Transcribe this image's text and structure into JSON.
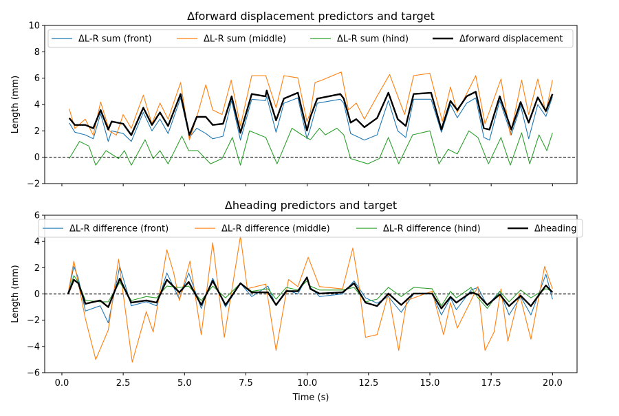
{
  "chart_data": [
    {
      "type": "line",
      "title": "Δforward displacement predictors and target",
      "xlabel": "",
      "ylabel": "Length (mm)",
      "xlim": [
        -0.7,
        21.0
      ],
      "ylim": [
        -2,
        10
      ],
      "xticks": [
        0.0,
        2.5,
        5.0,
        7.5,
        10.0,
        12.5,
        15.0,
        17.5,
        20.0
      ],
      "xtick_labels_visible": false,
      "yticks": [
        -2,
        0,
        2,
        4,
        6,
        8,
        10
      ],
      "ytick_labels": [
        "−2",
        "0",
        "2",
        "4",
        "6",
        "8",
        "10"
      ],
      "reference_line": {
        "y": 0,
        "style": "dashed",
        "color": "#000000"
      },
      "grid": false,
      "legend": {
        "placement": "top",
        "columns": 4
      },
      "series": [
        {
          "name": "ΔL-R sum (front)",
          "color": "#1f77b4",
          "width": "thin",
          "x": [
            0.3,
            0.53,
            0.95,
            1.28,
            1.58,
            1.89,
            2.03,
            2.5,
            2.83,
            3.32,
            3.67,
            4.0,
            4.33,
            4.84,
            5.2,
            5.5,
            5.87,
            6.15,
            6.57,
            6.92,
            7.28,
            7.74,
            8.3,
            8.35,
            8.73,
            9.05,
            9.62,
            9.99,
            10.13,
            10.41,
            11.35,
            11.49,
            11.77,
            12.0,
            12.33,
            12.85,
            13.31,
            13.69,
            14.02,
            14.34,
            15.05,
            15.47,
            15.84,
            16.12,
            16.5,
            16.87,
            17.2,
            17.43,
            17.85,
            18.32,
            18.7,
            19.03,
            19.4,
            19.73,
            20.0
          ],
          "y": [
            2.6,
            1.9,
            1.7,
            1.4,
            3.3,
            1.2,
            2.0,
            1.8,
            1.2,
            3.4,
            2.0,
            2.9,
            1.8,
            4.5,
            1.5,
            2.2,
            1.8,
            1.4,
            1.6,
            4.3,
            1.3,
            4.4,
            4.3,
            4.6,
            1.9,
            4.1,
            4.5,
            1.4,
            2.2,
            4.1,
            4.4,
            4.1,
            1.8,
            1.6,
            1.3,
            1.7,
            4.3,
            2.0,
            1.5,
            4.4,
            4.4,
            1.9,
            4.0,
            3.0,
            4.1,
            4.5,
            1.5,
            1.3,
            4.3,
            1.7,
            3.9,
            1.4,
            4.0,
            3.1,
            4.6
          ]
        },
        {
          "name": "ΔL-R sum (middle)",
          "color": "#ff7f0e",
          "width": "thin",
          "x": [
            0.3,
            0.53,
            0.95,
            1.28,
            1.58,
            1.94,
            2.22,
            2.5,
            2.83,
            3.32,
            3.67,
            4.0,
            4.33,
            4.84,
            5.2,
            5.5,
            5.87,
            6.15,
            6.53,
            6.9,
            7.28,
            7.74,
            8.31,
            8.73,
            9.05,
            9.62,
            9.99,
            10.13,
            10.32,
            10.6,
            11.39,
            11.68,
            12.0,
            12.33,
            12.85,
            13.36,
            13.97,
            14.34,
            15.0,
            15.51,
            15.84,
            16.12,
            16.87,
            17.25,
            17.9,
            18.28,
            18.74,
            19.03,
            19.4,
            19.73,
            20.0
          ],
          "y": [
            3.67,
            2.19,
            2.89,
            1.67,
            4.19,
            2.0,
            1.67,
            3.24,
            2.19,
            4.71,
            2.54,
            4.11,
            2.89,
            5.67,
            1.32,
            3.06,
            5.5,
            3.59,
            3.24,
            5.85,
            2.37,
            6.19,
            6.19,
            3.76,
            6.19,
            6.02,
            2.71,
            3.41,
            5.67,
            5.85,
            6.46,
            3.59,
            4.11,
            2.89,
            4.63,
            6.28,
            3.24,
            6.19,
            6.37,
            2.71,
            5.33,
            3.41,
            6.19,
            2.54,
            5.93,
            1.67,
            5.85,
            3.24,
            5.93,
            3.41,
            5.85
          ]
        },
        {
          "name": "ΔL-R sum (hind)",
          "color": "#2ca02c",
          "width": "thin",
          "x": [
            0.3,
            0.72,
            1.1,
            1.38,
            1.8,
            2.31,
            2.55,
            2.83,
            3.39,
            3.72,
            4.0,
            4.33,
            4.89,
            5.17,
            5.54,
            6.06,
            6.53,
            6.95,
            7.28,
            7.65,
            8.31,
            8.77,
            9.38,
            9.8,
            10.13,
            10.5,
            10.74,
            11.21,
            11.49,
            11.77,
            12.47,
            12.94,
            13.31,
            13.73,
            14.3,
            15.0,
            15.37,
            15.75,
            16.12,
            16.59,
            16.96,
            17.39,
            17.9,
            18.28,
            18.74,
            19.07,
            19.45,
            19.77,
            20.0
          ],
          "y": [
            -0.1,
            1.2,
            0.85,
            -0.6,
            0.5,
            -0.1,
            0.5,
            -0.6,
            1.33,
            -0.1,
            0.5,
            -0.5,
            1.6,
            0.5,
            0.5,
            -0.5,
            -0.1,
            1.5,
            -0.6,
            2.0,
            1.5,
            -0.5,
            2.2,
            1.68,
            1.33,
            2.2,
            1.7,
            2.2,
            1.7,
            -0.1,
            -0.5,
            -0.1,
            1.5,
            -0.5,
            1.7,
            2.0,
            -0.5,
            0.6,
            0.25,
            2.0,
            1.5,
            -0.5,
            1.5,
            -0.6,
            1.85,
            -0.5,
            1.7,
            0.5,
            1.85
          ]
        },
        {
          "name": "Δforward displacement",
          "color": "#000000",
          "width": "thick",
          "x": [
            0.3,
            0.53,
            0.95,
            1.28,
            1.58,
            1.89,
            2.03,
            2.5,
            2.83,
            3.32,
            3.67,
            4.0,
            4.33,
            4.84,
            5.2,
            5.5,
            5.87,
            6.15,
            6.57,
            6.92,
            7.28,
            7.74,
            8.3,
            8.35,
            8.73,
            9.05,
            9.62,
            9.99,
            10.13,
            10.41,
            11.35,
            11.49,
            11.77,
            12.0,
            12.33,
            12.85,
            13.31,
            13.69,
            14.02,
            14.34,
            15.05,
            15.47,
            15.84,
            16.12,
            16.5,
            16.87,
            17.2,
            17.43,
            17.85,
            18.32,
            18.7,
            19.03,
            19.4,
            19.73,
            20.0
          ],
          "y": [
            2.97,
            2.45,
            2.45,
            2.2,
            3.58,
            2.1,
            2.71,
            2.54,
            1.68,
            3.76,
            2.45,
            3.4,
            2.37,
            4.8,
            1.68,
            3.06,
            3.06,
            2.45,
            2.54,
            4.62,
            1.85,
            4.8,
            4.62,
            5.06,
            2.8,
            4.45,
            4.89,
            2.02,
            3.06,
            4.45,
            4.8,
            4.45,
            2.63,
            2.89,
            2.28,
            2.97,
            4.89,
            2.89,
            2.37,
            4.8,
            4.89,
            2.1,
            4.27,
            3.58,
            4.62,
            4.97,
            2.2,
            2.1,
            4.62,
            2.1,
            4.19,
            2.63,
            4.54,
            3.5,
            4.8
          ]
        }
      ]
    },
    {
      "type": "line",
      "title": "Δheading predictors and target",
      "xlabel": "Time (s)",
      "ylabel": "Length (mm)",
      "xlim": [
        -0.7,
        21.0
      ],
      "ylim": [
        -6,
        6
      ],
      "xticks": [
        0.0,
        2.5,
        5.0,
        7.5,
        10.0,
        12.5,
        15.0,
        17.5,
        20.0
      ],
      "xtick_labels": [
        "0.0",
        "2.5",
        "5.0",
        "7.5",
        "10.0",
        "12.5",
        "15.0",
        "17.5",
        "20.0"
      ],
      "yticks": [
        -6,
        -4,
        -2,
        0,
        2,
        4,
        6
      ],
      "ytick_labels": [
        "−6",
        "−4",
        "−2",
        "0",
        "2",
        "4",
        "6"
      ],
      "reference_line": {
        "y": 0,
        "style": "dashed",
        "color": "#000000"
      },
      "grid": false,
      "legend": {
        "placement": "top",
        "columns": 4
      },
      "series": [
        {
          "name": "ΔL-R difference (front)",
          "color": "#1f77b4",
          "width": "thin",
          "x": [
            0.25,
            0.49,
            0.67,
            0.96,
            1.56,
            1.89,
            2.36,
            2.83,
            3.44,
            3.86,
            4.28,
            4.79,
            5.17,
            5.68,
            6.15,
            6.67,
            7.28,
            7.74,
            8.4,
            8.73,
            9.15,
            9.62,
            9.99,
            10.13,
            10.5,
            11.44,
            11.91,
            12.38,
            12.85,
            13.31,
            13.83,
            14.34,
            15.09,
            15.47,
            15.84,
            16.08,
            16.68,
            16.96,
            17.34,
            17.85,
            18.23,
            18.7,
            19.12,
            19.73,
            20.0
          ],
          "y": [
            0,
            2.1,
            1.2,
            -1.3,
            -0.9,
            -2.2,
            2.1,
            -0.9,
            -0.6,
            -0.9,
            1.6,
            -0.4,
            1.6,
            -1.1,
            1.2,
            -1.0,
            0.8,
            -0.2,
            0.6,
            -0.9,
            0.3,
            0.0,
            1.3,
            0.5,
            -0.2,
            0.0,
            1.0,
            -0.3,
            -0.7,
            -0.2,
            -1.4,
            0.0,
            0.0,
            -1.6,
            -0.3,
            -1.2,
            0.3,
            0.5,
            -0.9,
            0.2,
            -1.6,
            -0.2,
            -1.6,
            1.5,
            -0.4
          ]
        },
        {
          "name": "ΔL-R difference (middle)",
          "color": "#ff7f0e",
          "width": "thin",
          "x": [
            0.25,
            0.49,
            0.96,
            1.38,
            1.89,
            2.31,
            2.87,
            3.44,
            3.72,
            4.28,
            4.56,
            4.79,
            5.22,
            5.68,
            6.15,
            6.62,
            7.28,
            7.56,
            8.31,
            8.73,
            9.24,
            9.62,
            10.04,
            10.5,
            11.44,
            11.86,
            12.1,
            12.38,
            12.85,
            13.31,
            13.73,
            14.06,
            15.09,
            15.56,
            15.84,
            16.12,
            16.96,
            17.25,
            17.62,
            17.9,
            18.18,
            18.65,
            19.12,
            19.49,
            19.68,
            20.0
          ],
          "y": [
            0,
            2.5,
            -1.9,
            -5.0,
            -2.75,
            2.65,
            -5.2,
            -1.35,
            -2.9,
            3.36,
            1.6,
            -0.5,
            2.5,
            -3.1,
            3.9,
            -3.3,
            4.4,
            0.4,
            0.75,
            -4.3,
            1.1,
            0.56,
            2.8,
            0.56,
            0.38,
            3.5,
            0.73,
            -3.3,
            -3.1,
            0.03,
            -4.3,
            -0.5,
            0.21,
            -3.1,
            -0.66,
            -2.6,
            0.56,
            -4.3,
            -2.9,
            0.38,
            -3.6,
            0.03,
            -3.45,
            0.21,
            2.1,
            0.38
          ]
        },
        {
          "name": "ΔL-R difference (hind)",
          "color": "#2ca02c",
          "width": "thin",
          "x": [
            0.25,
            0.49,
            0.67,
            0.96,
            1.56,
            1.89,
            2.36,
            2.83,
            3.44,
            3.86,
            4.28,
            4.79,
            5.17,
            5.68,
            6.15,
            6.67,
            7.28,
            7.74,
            8.4,
            8.73,
            9.15,
            9.62,
            9.99,
            10.13,
            10.5,
            11.44,
            11.91,
            12.38,
            12.85,
            13.31,
            13.83,
            14.34,
            15.09,
            15.47,
            15.84,
            16.08,
            16.68,
            16.96,
            17.34,
            17.85,
            18.23,
            18.7,
            19.12,
            19.73,
            20.0
          ],
          "y": [
            0,
            1.4,
            0.9,
            -0.5,
            -0.6,
            -0.6,
            0.9,
            -0.5,
            -0.2,
            -0.3,
            0.6,
            0.5,
            0.6,
            -0.5,
            0.6,
            -0.3,
            0.8,
            0.2,
            0.4,
            -0.4,
            0.5,
            0.3,
            1.0,
            0.6,
            0.3,
            0.3,
            0.5,
            -0.6,
            -0.4,
            0.5,
            -0.2,
            0.5,
            0.4,
            -0.9,
            0.2,
            -0.3,
            0.5,
            -0.3,
            -1.1,
            0.2,
            -0.6,
            0.3,
            -0.3,
            0.4,
            0.2
          ]
        },
        {
          "name": "Δheading",
          "color": "#000000",
          "width": "thick",
          "x": [
            0.25,
            0.49,
            0.67,
            0.96,
            1.56,
            1.89,
            2.36,
            2.83,
            3.44,
            3.86,
            4.28,
            4.79,
            5.17,
            5.68,
            6.15,
            6.67,
            7.28,
            7.74,
            8.4,
            8.73,
            9.15,
            9.62,
            9.99,
            10.13,
            10.5,
            11.44,
            11.91,
            12.38,
            12.85,
            13.31,
            13.83,
            14.34,
            15.09,
            15.47,
            15.84,
            16.08,
            16.68,
            16.96,
            17.34,
            17.85,
            18.23,
            18.7,
            19.12,
            19.73,
            20.0
          ],
          "y": [
            0,
            1.08,
            0.82,
            -0.75,
            -0.49,
            -1.0,
            1.17,
            -0.66,
            -0.49,
            -0.66,
            1.08,
            0.12,
            0.91,
            -0.84,
            1.0,
            -0.84,
            0.82,
            0.12,
            0.12,
            -0.84,
            0.21,
            0.21,
            1.26,
            0.38,
            0.03,
            0.12,
            0.82,
            -0.66,
            -0.92,
            0.03,
            -0.84,
            0.03,
            0.03,
            -1.1,
            -0.22,
            -0.66,
            0.12,
            -0.04,
            -0.84,
            -0.04,
            -0.92,
            -0.13,
            -0.92,
            0.65,
            0.12
          ]
        }
      ]
    }
  ]
}
